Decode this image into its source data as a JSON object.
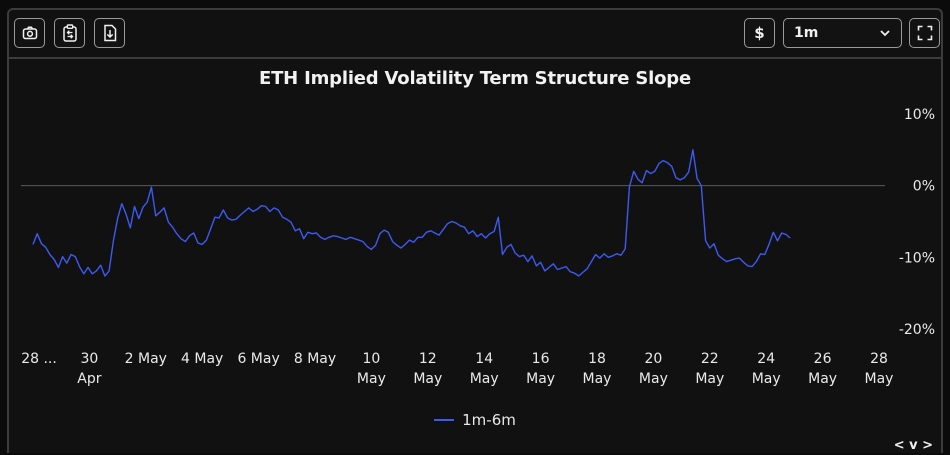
{
  "toolbar": {
    "currency_label": "$",
    "range_value": "1m"
  },
  "chart_data": {
    "type": "line",
    "title": "ETH Implied Volatility Term Structure Slope",
    "xlabel": "",
    "ylabel": "",
    "ylim": [
      -20,
      10
    ],
    "y_ticks": [
      "10%",
      "0%",
      "-10%",
      "-20%"
    ],
    "y_tick_values": [
      10,
      0,
      -10,
      -20
    ],
    "x_tick_labels": [
      [
        "28 ..."
      ],
      [
        "30",
        "Apr"
      ],
      [
        "2 May"
      ],
      [
        "4 May"
      ],
      [
        "6 May"
      ],
      [
        "8 May"
      ],
      [
        "10",
        "May"
      ],
      [
        "12",
        "May"
      ],
      [
        "14",
        "May"
      ],
      [
        "16",
        "May"
      ],
      [
        "18",
        "May"
      ],
      [
        "20",
        "May"
      ],
      [
        "22",
        "May"
      ],
      [
        "24",
        "May"
      ],
      [
        "26",
        "May"
      ],
      [
        "28",
        "May"
      ]
    ],
    "x_tick_days": [
      0,
      2,
      4,
      6,
      8,
      10,
      12,
      14,
      16,
      18,
      20,
      22,
      24,
      26,
      28,
      30
    ],
    "xlim_days": [
      0,
      30
    ],
    "series": [
      {
        "name": "1m-6m",
        "color": "#3d5af1",
        "points": [
          [
            0.0,
            -8.2
          ],
          [
            0.15,
            -6.7
          ],
          [
            0.3,
            -8.1
          ],
          [
            0.45,
            -8.6
          ],
          [
            0.6,
            -9.6
          ],
          [
            0.75,
            -10.3
          ],
          [
            0.9,
            -11.4
          ],
          [
            1.05,
            -9.9
          ],
          [
            1.2,
            -10.8
          ],
          [
            1.35,
            -9.6
          ],
          [
            1.5,
            -9.9
          ],
          [
            1.65,
            -11.3
          ],
          [
            1.8,
            -12.3
          ],
          [
            1.95,
            -11.4
          ],
          [
            2.1,
            -12.3
          ],
          [
            2.25,
            -11.9
          ],
          [
            2.4,
            -11.1
          ],
          [
            2.55,
            -12.6
          ],
          [
            2.7,
            -11.9
          ],
          [
            2.85,
            -7.7
          ],
          [
            3.0,
            -4.6
          ],
          [
            3.15,
            -2.5
          ],
          [
            3.3,
            -4.0
          ],
          [
            3.45,
            -5.9
          ],
          [
            3.6,
            -2.9
          ],
          [
            3.75,
            -4.6
          ],
          [
            3.9,
            -3.0
          ],
          [
            4.05,
            -2.3
          ],
          [
            4.2,
            -0.2
          ],
          [
            4.35,
            -4.2
          ],
          [
            4.5,
            -3.7
          ],
          [
            4.65,
            -3.1
          ],
          [
            4.8,
            -5.1
          ],
          [
            4.95,
            -5.8
          ],
          [
            5.1,
            -6.7
          ],
          [
            5.25,
            -7.4
          ],
          [
            5.4,
            -7.8
          ],
          [
            5.55,
            -7.0
          ],
          [
            5.7,
            -6.6
          ],
          [
            5.85,
            -8.0
          ],
          [
            6.0,
            -8.2
          ],
          [
            6.15,
            -7.6
          ],
          [
            6.3,
            -6.0
          ],
          [
            6.45,
            -4.4
          ],
          [
            6.6,
            -4.5
          ],
          [
            6.75,
            -3.4
          ],
          [
            6.9,
            -4.5
          ],
          [
            7.05,
            -4.8
          ],
          [
            7.2,
            -4.7
          ],
          [
            7.35,
            -4.1
          ],
          [
            7.5,
            -3.6
          ],
          [
            7.65,
            -3.1
          ],
          [
            7.8,
            -3.6
          ],
          [
            7.95,
            -3.3
          ],
          [
            8.1,
            -2.8
          ],
          [
            8.25,
            -2.9
          ],
          [
            8.4,
            -3.6
          ],
          [
            8.55,
            -3.1
          ],
          [
            8.7,
            -3.4
          ],
          [
            8.85,
            -4.4
          ],
          [
            9.0,
            -4.7
          ],
          [
            9.15,
            -5.1
          ],
          [
            9.3,
            -6.3
          ],
          [
            9.45,
            -6.0
          ],
          [
            9.6,
            -7.4
          ],
          [
            9.75,
            -6.5
          ],
          [
            9.9,
            -6.7
          ],
          [
            10.05,
            -6.6
          ],
          [
            10.2,
            -7.2
          ],
          [
            10.35,
            -7.5
          ],
          [
            10.5,
            -7.2
          ],
          [
            10.65,
            -7.0
          ],
          [
            10.8,
            -7.1
          ],
          [
            10.95,
            -7.3
          ],
          [
            11.1,
            -7.5
          ],
          [
            11.25,
            -7.2
          ],
          [
            11.4,
            -7.4
          ],
          [
            11.55,
            -7.6
          ],
          [
            11.7,
            -7.8
          ],
          [
            11.85,
            -8.5
          ],
          [
            12.0,
            -8.9
          ],
          [
            12.15,
            -8.3
          ],
          [
            12.3,
            -6.7
          ],
          [
            12.45,
            -6.2
          ],
          [
            12.6,
            -6.5
          ],
          [
            12.75,
            -7.8
          ],
          [
            12.9,
            -8.3
          ],
          [
            13.05,
            -8.7
          ],
          [
            13.2,
            -8.2
          ],
          [
            13.35,
            -7.6
          ],
          [
            13.5,
            -7.9
          ],
          [
            13.65,
            -7.2
          ],
          [
            13.8,
            -7.2
          ],
          [
            13.95,
            -6.5
          ],
          [
            14.1,
            -6.3
          ],
          [
            14.25,
            -6.6
          ],
          [
            14.4,
            -6.9
          ],
          [
            14.55,
            -6.1
          ],
          [
            14.7,
            -5.3
          ],
          [
            14.85,
            -5.0
          ],
          [
            15.0,
            -5.2
          ],
          [
            15.15,
            -5.6
          ],
          [
            15.3,
            -5.8
          ],
          [
            15.45,
            -6.7
          ],
          [
            15.6,
            -6.3
          ],
          [
            15.75,
            -7.1
          ],
          [
            15.9,
            -6.7
          ],
          [
            16.05,
            -7.3
          ],
          [
            16.2,
            -6.7
          ],
          [
            16.35,
            -6.4
          ],
          [
            16.5,
            -4.4
          ],
          [
            16.65,
            -9.6
          ],
          [
            16.8,
            -8.6
          ],
          [
            16.95,
            -8.2
          ],
          [
            17.1,
            -9.4
          ],
          [
            17.25,
            -9.9
          ],
          [
            17.4,
            -9.7
          ],
          [
            17.55,
            -10.6
          ],
          [
            17.7,
            -9.8
          ],
          [
            17.85,
            -11.2
          ],
          [
            18.0,
            -10.7
          ],
          [
            18.15,
            -11.9
          ],
          [
            18.3,
            -11.4
          ],
          [
            18.45,
            -10.9
          ],
          [
            18.6,
            -11.7
          ],
          [
            18.75,
            -11.5
          ],
          [
            18.9,
            -11.3
          ],
          [
            19.05,
            -12.0
          ],
          [
            19.2,
            -12.2
          ],
          [
            19.35,
            -12.6
          ],
          [
            19.5,
            -12.1
          ],
          [
            19.65,
            -11.6
          ],
          [
            19.8,
            -10.6
          ],
          [
            19.95,
            -9.6
          ],
          [
            20.1,
            -10.1
          ],
          [
            20.25,
            -9.5
          ],
          [
            20.4,
            -10.0
          ],
          [
            20.55,
            -9.8
          ],
          [
            20.7,
            -9.5
          ],
          [
            20.85,
            -9.7
          ],
          [
            21.0,
            -8.8
          ],
          [
            21.15,
            -0.2
          ],
          [
            21.3,
            2.0
          ],
          [
            21.45,
            0.9
          ],
          [
            21.6,
            0.4
          ],
          [
            21.75,
            2.1
          ],
          [
            21.9,
            1.7
          ],
          [
            22.05,
            2.0
          ],
          [
            22.2,
            3.1
          ],
          [
            22.35,
            3.5
          ],
          [
            22.5,
            3.2
          ],
          [
            22.65,
            2.7
          ],
          [
            22.8,
            1.1
          ],
          [
            22.95,
            0.8
          ],
          [
            23.1,
            1.1
          ],
          [
            23.25,
            1.9
          ],
          [
            23.4,
            5.0
          ],
          [
            23.55,
            1.0
          ],
          [
            23.7,
            0.0
          ],
          [
            23.85,
            -7.7
          ],
          [
            24.0,
            -8.7
          ],
          [
            24.15,
            -8.1
          ],
          [
            24.3,
            -9.7
          ],
          [
            24.45,
            -10.2
          ],
          [
            24.6,
            -10.6
          ],
          [
            24.75,
            -10.4
          ],
          [
            24.9,
            -10.2
          ],
          [
            25.05,
            -10.1
          ],
          [
            25.2,
            -10.7
          ],
          [
            25.35,
            -11.2
          ],
          [
            25.5,
            -11.3
          ],
          [
            25.65,
            -10.6
          ],
          [
            25.8,
            -9.5
          ],
          [
            25.95,
            -9.6
          ],
          [
            26.1,
            -8.2
          ],
          [
            26.25,
            -6.5
          ],
          [
            26.4,
            -7.7
          ],
          [
            26.55,
            -6.6
          ],
          [
            26.7,
            -6.8
          ],
          [
            26.85,
            -7.3
          ]
        ]
      }
    ]
  }
}
